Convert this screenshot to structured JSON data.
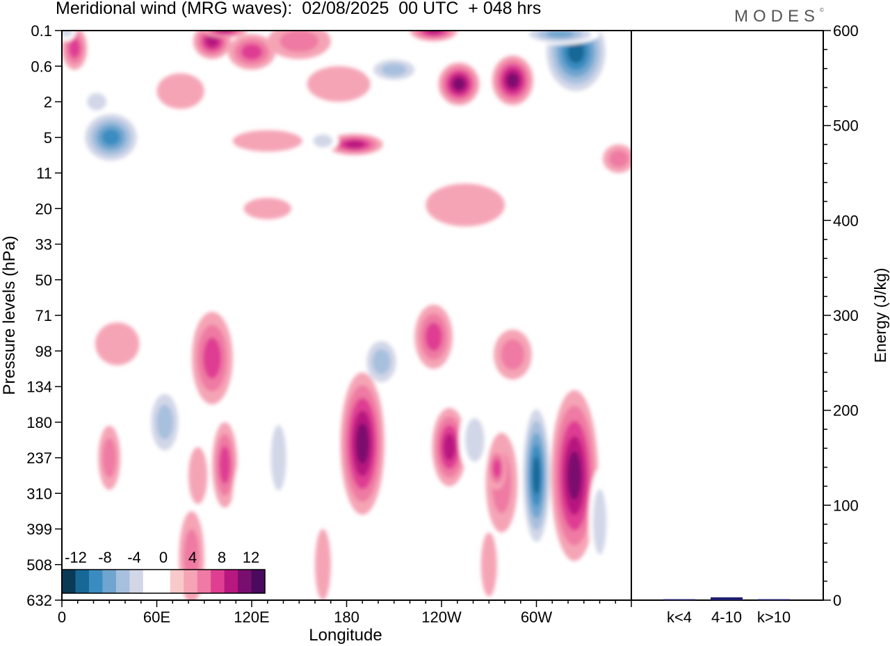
{
  "title": "Meridional wind (MRG waves):  02/08/2025  00 UTC  + 048 hrs",
  "brand": "MODES",
  "brand_mark": "©",
  "chart_data": [
    {
      "type": "heatmap",
      "title": "Meridional wind (MRG waves):  02/08/2025  00 UTC  + 048 hrs",
      "xlabel": "Longitude",
      "ylabel": "Pressure levels (hPa)",
      "x_ticks": [
        "0",
        "60E",
        "120E",
        "180",
        "120W",
        "60W"
      ],
      "x_tick_values": [
        0,
        60,
        120,
        180,
        240,
        300
      ],
      "xlim": [
        0,
        360
      ],
      "y_ticks": [
        "0.1",
        "0.6",
        "2",
        "5",
        "11",
        "20",
        "33",
        "50",
        "71",
        "98",
        "134",
        "180",
        "237",
        "310",
        "399",
        "508",
        "632"
      ],
      "colorbar": {
        "labels": [
          "-12",
          "-8",
          "-4",
          "0",
          "4",
          "8",
          "12"
        ],
        "colors": [
          "#0b3a56",
          "#176896",
          "#3a8cc0",
          "#6fa5cf",
          "#a7c0de",
          "#d2d7e8",
          "#ffffff",
          "#ffffff",
          "#f8c9c9",
          "#f5a4b6",
          "#ef7aa3",
          "#df3e93",
          "#b8177f",
          "#7a0e6e",
          "#4a0a5e"
        ]
      },
      "blobs": [
        {
          "lon": 31,
          "lev": 3.0,
          "rx": 20,
          "ry": 0.8,
          "v": -10
        },
        {
          "lon": 22,
          "lev": 2.0,
          "rx": 10,
          "ry": 0.4,
          "v": -4
        },
        {
          "lon": 8,
          "lev": 0.5,
          "rx": 8,
          "ry": 0.6,
          "v": 6
        },
        {
          "lon": 3,
          "lev": 0.0,
          "rx": 6,
          "ry": 0.3,
          "v": -4
        },
        {
          "lon": 42,
          "lev": 0.6,
          "rx": 16,
          "ry": 0.5,
          "v": -2
        },
        {
          "lon": 95,
          "lev": 0.3,
          "rx": 12,
          "ry": 0.5,
          "v": 8
        },
        {
          "lon": 103,
          "lev": 0.0,
          "rx": 14,
          "ry": 0.2,
          "v": 9
        },
        {
          "lon": 120,
          "lev": 0.6,
          "rx": 15,
          "ry": 0.5,
          "v": 7
        },
        {
          "lon": 150,
          "lev": 0.3,
          "rx": 20,
          "ry": 0.5,
          "v": 4
        },
        {
          "lon": 75,
          "lev": 1.7,
          "rx": 15,
          "ry": 0.5,
          "v": 2
        },
        {
          "lon": 130,
          "lev": 3.1,
          "rx": 22,
          "ry": 0.3,
          "v": 2
        },
        {
          "lon": 175,
          "lev": 1.5,
          "rx": 20,
          "ry": 0.5,
          "v": 3
        },
        {
          "lon": 210,
          "lev": 1.1,
          "rx": 18,
          "ry": 0.4,
          "v": -7
        },
        {
          "lon": 205,
          "lev": 2.2,
          "rx": 10,
          "ry": 0.3,
          "v": -3
        },
        {
          "lon": 235,
          "lev": 0.0,
          "rx": 15,
          "ry": 0.3,
          "v": 9
        },
        {
          "lon": 251,
          "lev": 1.5,
          "rx": 13,
          "ry": 0.6,
          "v": 10
        },
        {
          "lon": 285,
          "lev": 1.4,
          "rx": 13,
          "ry": 0.7,
          "v": 11
        },
        {
          "lon": 185,
          "lev": 3.2,
          "rx": 18,
          "ry": 0.3,
          "v": 8
        },
        {
          "lon": 165,
          "lev": 3.1,
          "rx": 10,
          "ry": 0.3,
          "v": -4
        },
        {
          "lon": 225,
          "lev": 3.6,
          "rx": 15,
          "ry": 0.3,
          "v": -3
        },
        {
          "lon": 325,
          "lev": 0.6,
          "rx": 22,
          "ry": 1.3,
          "v": -12
        },
        {
          "lon": 315,
          "lev": 0.1,
          "rx": 25,
          "ry": 0.3,
          "v": -9
        },
        {
          "lon": 295,
          "lev": 3.6,
          "rx": 20,
          "ry": 0.4,
          "v": -3
        },
        {
          "lon": 352,
          "lev": 3.6,
          "rx": 10,
          "ry": 0.4,
          "v": 4
        },
        {
          "lon": 255,
          "lev": 4.9,
          "rx": 25,
          "ry": 0.6,
          "v": 2
        },
        {
          "lon": 320,
          "lev": 5.7,
          "rx": 12,
          "ry": 0.9,
          "v": -2
        },
        {
          "lon": 130,
          "lev": 5.0,
          "rx": 15,
          "ry": 0.3,
          "v": 2
        },
        {
          "lon": 40,
          "lev": 5.0,
          "rx": 15,
          "ry": 0.2,
          "v": -2
        },
        {
          "lon": 320,
          "lev": 7.0,
          "rx": 10,
          "ry": 0.2,
          "v": -2
        },
        {
          "lon": 35,
          "lev": 8.8,
          "rx": 14,
          "ry": 0.6,
          "v": 3
        },
        {
          "lon": 68,
          "lev": 10.0,
          "rx": 18,
          "ry": 2.2,
          "v": -3
        },
        {
          "lon": 65,
          "lev": 11.0,
          "rx": 12,
          "ry": 1.1,
          "v": -7
        },
        {
          "lon": 95,
          "lev": 9.2,
          "rx": 13,
          "ry": 1.3,
          "v": 7
        },
        {
          "lon": 127,
          "lev": 8.9,
          "rx": 10,
          "ry": 0.7,
          "v": -2
        },
        {
          "lon": 202,
          "lev": 9.3,
          "rx": 13,
          "ry": 0.8,
          "v": -6
        },
        {
          "lon": 235,
          "lev": 8.6,
          "rx": 12,
          "ry": 0.9,
          "v": 6
        },
        {
          "lon": 285,
          "lev": 9.1,
          "rx": 12,
          "ry": 0.7,
          "v": 4
        },
        {
          "lon": 310,
          "lev": 8.7,
          "rx": 10,
          "ry": 0.5,
          "v": -2
        },
        {
          "lon": 345,
          "lev": 9.4,
          "rx": 15,
          "ry": 0.6,
          "v": -3
        },
        {
          "lon": 190,
          "lev": 11.6,
          "rx": 14,
          "ry": 2.0,
          "v": 10
        },
        {
          "lon": 245,
          "lev": 11.7,
          "rx": 11,
          "ry": 1.1,
          "v": 8
        },
        {
          "lon": 261,
          "lev": 11.5,
          "rx": 10,
          "ry": 1.0,
          "v": -5
        },
        {
          "lon": 300,
          "lev": 12.5,
          "rx": 10,
          "ry": 2.2,
          "v": -13
        },
        {
          "lon": 324,
          "lev": 12.5,
          "rx": 15,
          "ry": 2.4,
          "v": 11
        },
        {
          "lon": 278,
          "lev": 12.7,
          "rx": 10,
          "ry": 1.4,
          "v": 4
        },
        {
          "lon": 275,
          "lev": 12.3,
          "rx": 6,
          "ry": 0.6,
          "v": 6
        },
        {
          "lon": 340,
          "lev": 13.8,
          "rx": 7,
          "ry": 1.5,
          "v": -4
        },
        {
          "lon": 103,
          "lev": 12.2,
          "rx": 8,
          "ry": 1.2,
          "v": 6
        },
        {
          "lon": 86,
          "lev": 12.5,
          "rx": 6,
          "ry": 0.8,
          "v": 3
        },
        {
          "lon": 30,
          "lev": 12.0,
          "rx": 7,
          "ry": 0.9,
          "v": 4
        },
        {
          "lon": 137,
          "lev": 12.0,
          "rx": 8,
          "ry": 1.5,
          "v": -4
        },
        {
          "lon": 155,
          "lev": 12.0,
          "rx": 7,
          "ry": 1.2,
          "v": -3
        },
        {
          "lon": 260,
          "lev": 13.4,
          "rx": 6,
          "ry": 0.9,
          "v": -3
        },
        {
          "lon": 82,
          "lev": 14.8,
          "rx": 8,
          "ry": 1.3,
          "v": 5
        },
        {
          "lon": 53,
          "lev": 14.0,
          "rx": 6,
          "ry": 1.0,
          "v": -3
        },
        {
          "lon": 115,
          "lev": 14.0,
          "rx": 8,
          "ry": 2.0,
          "v": -2
        },
        {
          "lon": 240,
          "lev": 14.8,
          "rx": 5,
          "ry": 1.0,
          "v": -2
        },
        {
          "lon": 270,
          "lev": 15.0,
          "rx": 5,
          "ry": 0.9,
          "v": 2
        },
        {
          "lon": 210,
          "lev": 15.5,
          "rx": 6,
          "ry": 1.0,
          "v": -2
        },
        {
          "lon": 165,
          "lev": 15.0,
          "rx": 5,
          "ry": 1.0,
          "v": 2
        },
        {
          "lon": 15,
          "lev": 9.0,
          "rx": 5,
          "ry": 0.4,
          "v": -2
        }
      ]
    },
    {
      "type": "bar",
      "categories": [
        "k<4",
        "4-10",
        "k>10"
      ],
      "values": [
        1,
        3,
        1
      ],
      "ylim": [
        0,
        600
      ],
      "ylabel": "Energy (J/kg)",
      "y_ticks": [
        0,
        100,
        200,
        300,
        400,
        500,
        600
      ]
    }
  ]
}
